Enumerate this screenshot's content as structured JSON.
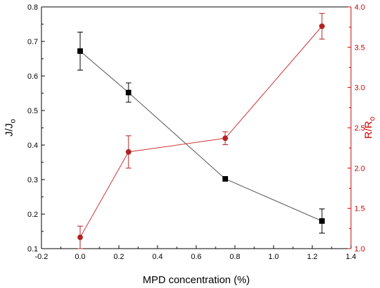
{
  "chart_data": {
    "type": "line",
    "xlabel": "MPD concentration (%)",
    "ylabel_left": {
      "main": "J/J",
      "sub": "o"
    },
    "ylabel_right": {
      "main": "R/R",
      "sub": "o"
    },
    "xlim": [
      -0.2,
      1.4
    ],
    "ylim_left": [
      0.1,
      0.8
    ],
    "ylim_right": [
      1.0,
      4.0
    ],
    "x_ticks": [
      "-0.2",
      "0.0",
      "0.2",
      "0.4",
      "0.6",
      "0.8",
      "1.0",
      "1.2",
      "1.4"
    ],
    "y_left_ticks": [
      "0.1",
      "0.2",
      "0.3",
      "0.4",
      "0.5",
      "0.6",
      "0.7",
      "0.8"
    ],
    "y_right_ticks": [
      "1.0",
      "1.5",
      "2.0",
      "2.5",
      "3.0",
      "3.5",
      "4.0"
    ],
    "grid": false,
    "series": [
      {
        "axis": "left",
        "marker": "square",
        "color": "#000000",
        "line_color": "#555555",
        "x": [
          0.0,
          0.25,
          0.75,
          1.25
        ],
        "y": [
          0.672,
          0.552,
          0.302,
          0.18
        ],
        "err": [
          0.055,
          0.028,
          0.0,
          0.035
        ]
      },
      {
        "axis": "right",
        "marker": "circle",
        "color": "#b22222",
        "line_color": "#cc3333",
        "x": [
          0.0,
          0.25,
          0.75,
          1.25
        ],
        "y": [
          1.14,
          2.2,
          2.37,
          3.76
        ],
        "err": [
          0.14,
          0.2,
          0.08,
          0.16
        ]
      }
    ],
    "colors": {
      "left_axis": "#000000",
      "right_axis": "#cc0000"
    }
  }
}
